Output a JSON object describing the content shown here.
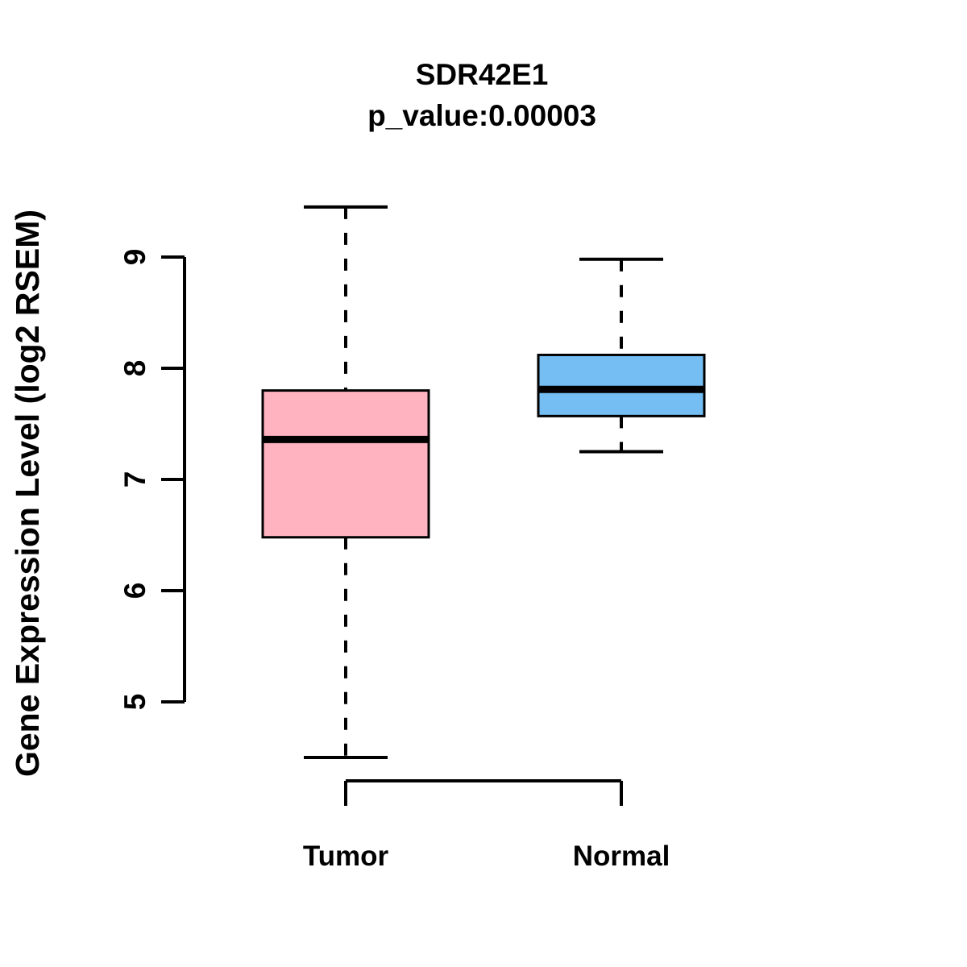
{
  "chart_data": {
    "type": "boxplot",
    "title": "SDR42E1",
    "subtitle": "p_value:0.00003",
    "ylabel": "Gene Expression Level (log2 RSEM)",
    "xlabel": "",
    "categories": [
      "Tumor",
      "Normal"
    ],
    "ylim": [
      5,
      9
    ],
    "yticks": [
      5,
      6,
      7,
      8,
      9
    ],
    "grid": false,
    "legend": "none",
    "whisker_style": "dashed",
    "stroke_color": "#000000",
    "background_color": "#ffffff",
    "series": [
      {
        "name": "Tumor",
        "fill": "#FFB3C1",
        "min": 4.5,
        "q1": 6.48,
        "median": 7.36,
        "q3": 7.8,
        "max": 9.45
      },
      {
        "name": "Normal",
        "fill": "#74BEF4",
        "min": 7.25,
        "q1": 7.57,
        "median": 7.81,
        "q3": 8.12,
        "max": 8.98
      }
    ]
  }
}
